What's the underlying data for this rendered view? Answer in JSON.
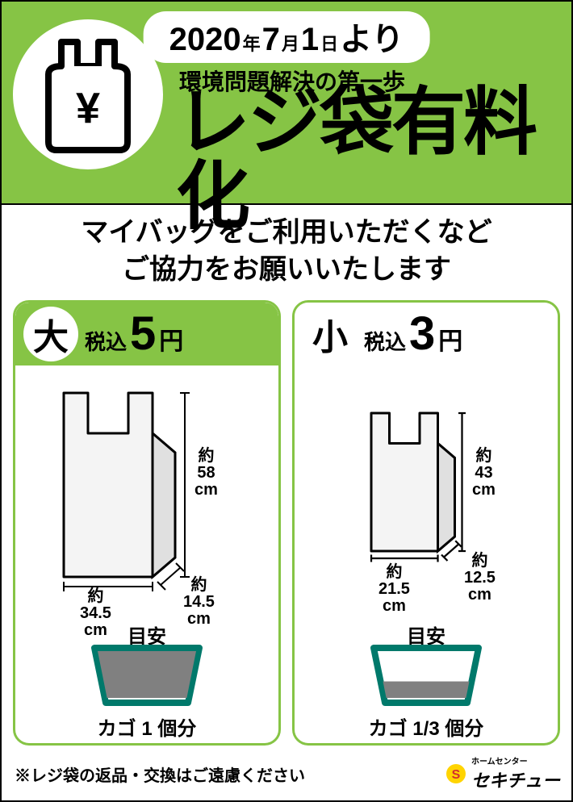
{
  "colors": {
    "green": "#86c445",
    "teal": "#00796b",
    "gray_fill": "#808080",
    "border": "#000000",
    "white": "#ffffff"
  },
  "header": {
    "date_year": "2020",
    "date_year_unit": "年",
    "date_month": "7",
    "date_month_unit": "月",
    "date_day": "1",
    "date_day_unit": "日",
    "date_suffix": "より",
    "subline": "環境問題解決の第一歩",
    "title": "レジ袋有料化"
  },
  "message": {
    "line1": "マイバッグをご利用いただくなど",
    "line2": "ご協力をお願いいたします"
  },
  "panels": [
    {
      "size_label": "大",
      "tax_label": "税込",
      "price": "5",
      "yen_label": "円",
      "dims": {
        "height": "約\n58\ncm",
        "width": "約\n34.5\ncm",
        "depth": "約\n14.5\ncm"
      },
      "meyasu_label": "目安",
      "capacity": "カゴ 1 個分",
      "basket_fill_ratio": 0.95,
      "border_color": "#86c445",
      "head_bg": "#86c445",
      "bag_scale": 1.0
    },
    {
      "size_label": "小",
      "tax_label": "税込",
      "price": "3",
      "yen_label": "円",
      "dims": {
        "height": "約\n43\ncm",
        "width": "約\n21.5\ncm",
        "depth": "約\n12.5\ncm"
      },
      "meyasu_label": "目安",
      "capacity": "カゴ 1/3 個分",
      "basket_fill_ratio": 0.33,
      "border_color": "#86c445",
      "head_bg": "#ffffff",
      "bag_scale": 0.75
    }
  ],
  "note": "※レジ袋の返品・交換はご遠慮ください",
  "brand": {
    "super": "ホームセンター",
    "main": "セキチュー",
    "logo_color_outer": "#ffd400",
    "logo_color_inner": "#d32f2f"
  }
}
